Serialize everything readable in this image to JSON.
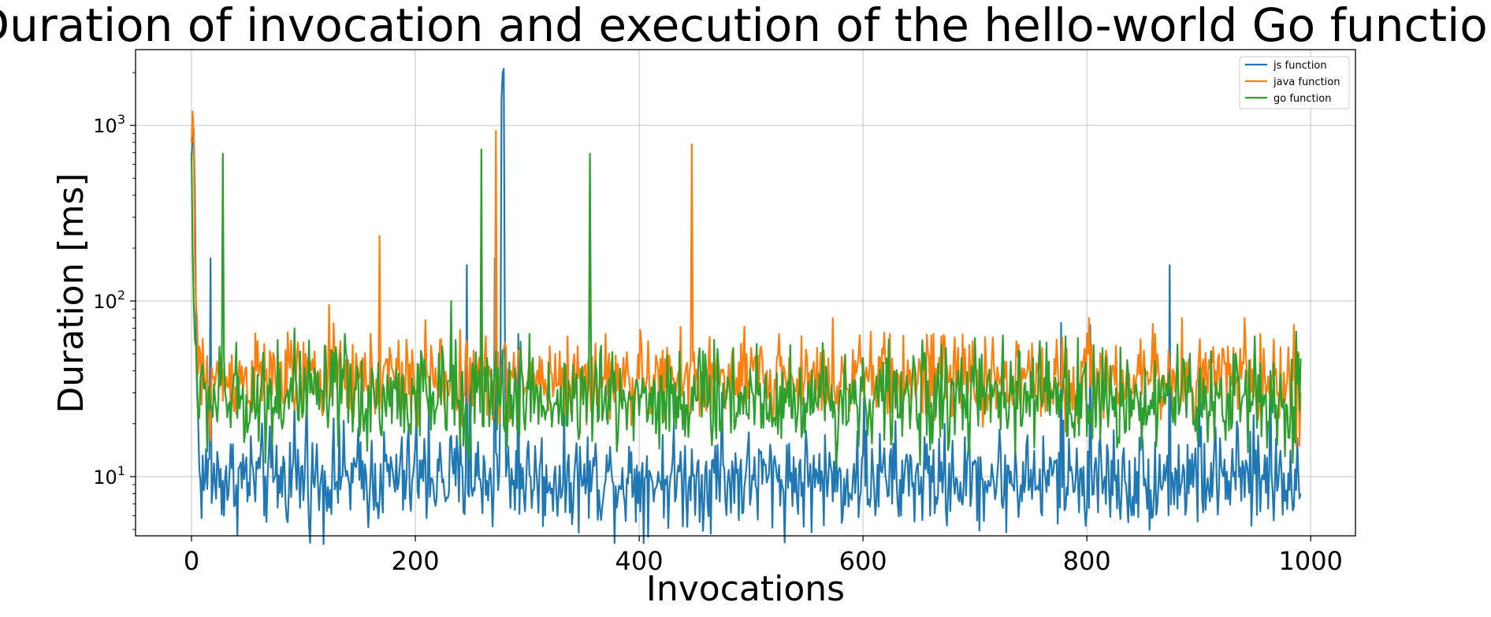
{
  "chart_data": {
    "type": "line",
    "title": "Duration of invocation and execution of the hello-world Go function",
    "xlabel": "Invocations",
    "ylabel": "Duration [ms]",
    "xlim": [
      -50,
      1040
    ],
    "ylim": [
      4.6,
      2700
    ],
    "yscale": "log",
    "grid": true,
    "legend_position": "top-right",
    "xticks": [
      0,
      200,
      400,
      600,
      800,
      1000
    ],
    "yticks": [
      10,
      100,
      1000
    ],
    "yticks_text": [
      [
        "10",
        "1"
      ],
      [
        "10",
        "2"
      ],
      [
        "10",
        "3"
      ]
    ],
    "series": [
      {
        "name": "js function",
        "color": "#1f77b4",
        "baseline": 9.8,
        "spread": 0.32,
        "peaks": [
          [
            0,
            620
          ],
          [
            1,
            880
          ],
          [
            2,
            940
          ],
          [
            3,
            420
          ],
          [
            4,
            90
          ],
          [
            5,
            35
          ],
          [
            6,
            20
          ],
          [
            17,
            175
          ],
          [
            92,
            25
          ],
          [
            103,
            31
          ],
          [
            132,
            20
          ],
          [
            201,
            22
          ],
          [
            212,
            24
          ],
          [
            246,
            160
          ],
          [
            249,
            41
          ],
          [
            271,
            175
          ],
          [
            276,
            30
          ],
          [
            277,
            1400
          ],
          [
            278,
            2000
          ],
          [
            279,
            2100
          ],
          [
            280,
            70
          ],
          [
            292,
            65
          ],
          [
            316,
            6
          ],
          [
            474,
            30
          ],
          [
            601,
            28
          ],
          [
            634,
            6
          ],
          [
            660,
            6
          ],
          [
            760,
            6
          ],
          [
            777,
            75
          ],
          [
            803,
            73
          ],
          [
            840,
            6
          ],
          [
            874,
            160
          ],
          [
            900,
            40
          ],
          [
            964,
            40
          ],
          [
            990,
            7.5
          ],
          [
            991,
            8
          ]
        ]
      },
      {
        "name": "java function",
        "color": "#ff7f0e",
        "baseline": 36,
        "spread": 0.28,
        "peaks": [
          [
            0,
            800
          ],
          [
            1,
            1200
          ],
          [
            2,
            900
          ],
          [
            3,
            170
          ],
          [
            4,
            95
          ],
          [
            5,
            80
          ],
          [
            8,
            50
          ],
          [
            17,
            16
          ],
          [
            123,
            95
          ],
          [
            168,
            235
          ],
          [
            209,
            78
          ],
          [
            272,
            930
          ],
          [
            447,
            780
          ],
          [
            525,
            65
          ],
          [
            573,
            80
          ],
          [
            624,
            65
          ],
          [
            663,
            65
          ],
          [
            802,
            80
          ],
          [
            861,
            65
          ],
          [
            885,
            80
          ],
          [
            941,
            80
          ],
          [
            955,
            65
          ],
          [
            987,
            15
          ],
          [
            990,
            15
          ],
          [
            991,
            30
          ]
        ]
      },
      {
        "name": "go function",
        "color": "#2ca02c",
        "baseline": 28,
        "spread": 0.33,
        "peaks": [
          [
            0,
            700
          ],
          [
            1,
            200
          ],
          [
            2,
            95
          ],
          [
            3,
            60
          ],
          [
            4,
            55
          ],
          [
            28,
            690
          ],
          [
            77,
            60
          ],
          [
            92,
            70
          ],
          [
            137,
            65
          ],
          [
            232,
            100
          ],
          [
            236,
            60
          ],
          [
            259,
            730
          ],
          [
            302,
            65
          ],
          [
            356,
            690
          ],
          [
            467,
            60
          ],
          [
            505,
            57
          ],
          [
            764,
            58
          ],
          [
            781,
            63
          ],
          [
            950,
            63
          ],
          [
            977,
            13
          ],
          [
            984,
            12
          ],
          [
            987,
            67
          ],
          [
            989,
            50
          ],
          [
            991,
            47
          ]
        ]
      }
    ]
  }
}
